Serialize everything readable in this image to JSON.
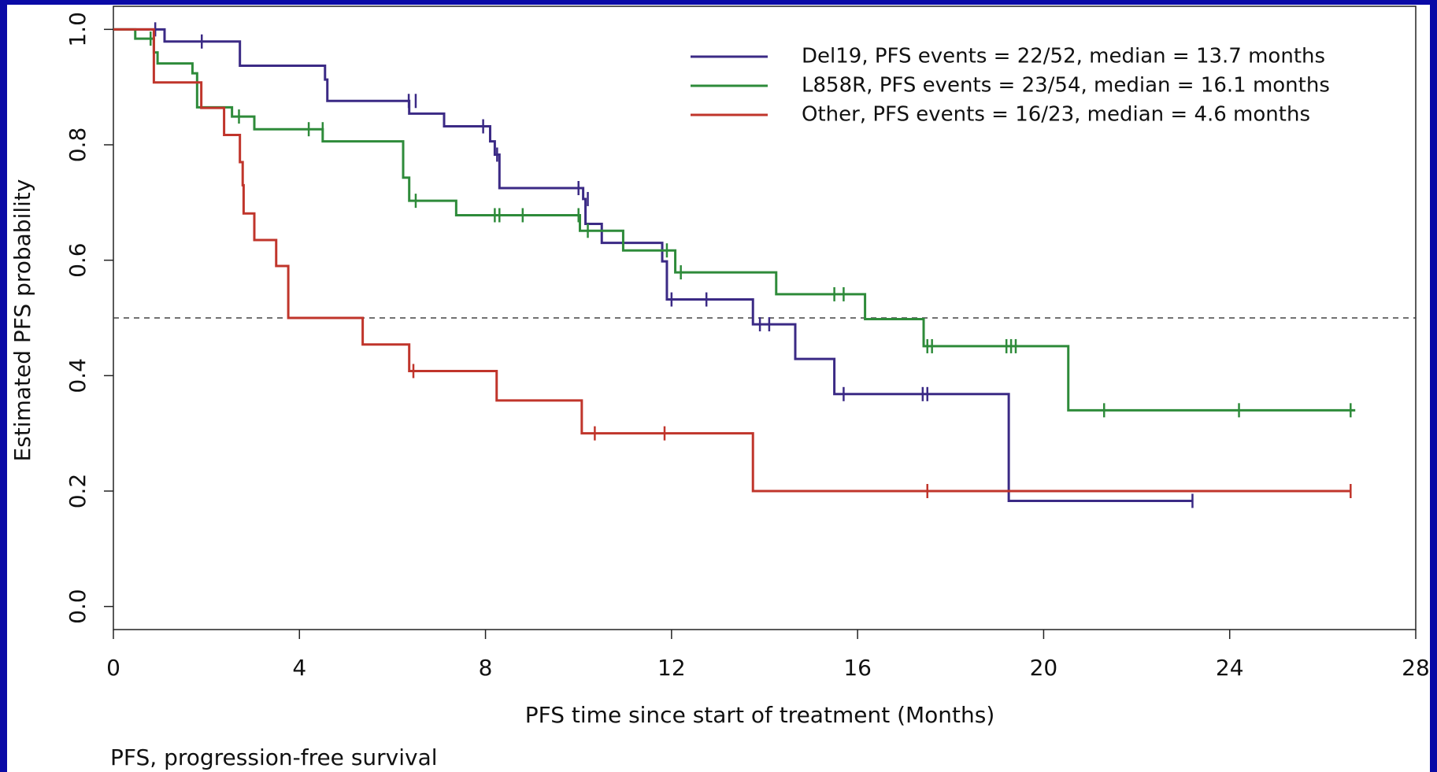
{
  "chart_data": {
    "type": "kaplan-meier",
    "xlabel": "PFS time since start of treatment (Months)",
    "ylabel": "Estimated PFS probability",
    "footnote": "PFS, progression-free survival",
    "xlim": [
      0,
      28
    ],
    "xticks": [
      0,
      4,
      8,
      12,
      16,
      20,
      24,
      28
    ],
    "ylim": [
      -0.04,
      1.04
    ],
    "yticks": [
      {
        "value": 0,
        "label": "0.0"
      },
      0.2,
      0.4,
      0.6,
      0.8,
      {
        "value": 1,
        "label": "1.0"
      }
    ],
    "hline": 0.5,
    "legend": "top-right",
    "series": [
      {
        "name": "Del19, PFS events = 22/52, median = 13.7 months",
        "color": "#3b2a85",
        "x": [
          0,
          1.1,
          2.72,
          4.55,
          4.6,
          6.36,
          7.11,
          8.1,
          8.2,
          8.3,
          10.1,
          10.15,
          10.5,
          11.8,
          11.9,
          13.75,
          14.66,
          15.5,
          19.25,
          23.2
        ],
        "values": [
          1,
          0.979,
          0.937,
          0.913,
          0.876,
          0.854,
          0.832,
          0.806,
          0.783,
          0.725,
          0.706,
          0.663,
          0.63,
          0.598,
          0.532,
          0.489,
          0.429,
          0.368,
          0.183,
          0.183
        ],
        "censored": {
          "x": [
            0.9,
            1.9,
            6.35,
            6.5,
            7.95,
            8.25,
            10.0,
            10.2,
            12.0,
            12.75,
            13.9,
            14.1,
            15.7,
            17.4,
            17.5,
            23.2
          ],
          "values": [
            1,
            0.979,
            0.876,
            0.876,
            0.832,
            0.783,
            0.725,
            0.706,
            0.532,
            0.532,
            0.489,
            0.489,
            0.368,
            0.368,
            0.368,
            0.183
          ]
        }
      },
      {
        "name": "L858R, PFS events = 23/54, median = 16.1 months",
        "color": "#2e8b3a",
        "x": [
          0,
          0.47,
          0.87,
          0.95,
          1.7,
          1.8,
          2.55,
          3.03,
          4.5,
          6.23,
          6.36,
          7.37,
          10.03,
          10.96,
          12.08,
          14.25,
          16.16,
          17.42,
          20.53,
          26.7
        ],
        "values": [
          1,
          0.984,
          0.96,
          0.941,
          0.924,
          0.865,
          0.849,
          0.827,
          0.806,
          0.743,
          0.703,
          0.678,
          0.651,
          0.617,
          0.579,
          0.541,
          0.498,
          0.451,
          0.34,
          0.34
        ],
        "censored": {
          "x": [
            0.8,
            2.7,
            4.2,
            4.5,
            6.5,
            8.2,
            8.3,
            8.8,
            10.0,
            10.2,
            11.9,
            12.2,
            15.5,
            15.7,
            17.5,
            17.6,
            19.2,
            19.3,
            19.4,
            21.3,
            24.2,
            26.6
          ],
          "values": [
            0.984,
            0.849,
            0.827,
            0.827,
            0.703,
            0.678,
            0.678,
            0.678,
            0.678,
            0.651,
            0.617,
            0.579,
            0.541,
            0.541,
            0.451,
            0.451,
            0.451,
            0.451,
            0.451,
            0.34,
            0.34,
            0.34
          ]
        }
      },
      {
        "name": "Other, PFS events = 16/23, median = 4.6 months",
        "color": "#c0352b",
        "x": [
          0,
          0.87,
          1.89,
          2.38,
          2.72,
          2.78,
          2.8,
          3.03,
          3.5,
          3.76,
          5.36,
          6.36,
          8.24,
          10.07,
          13.75,
          26.6
        ],
        "values": [
          1,
          0.908,
          0.864,
          0.817,
          0.77,
          0.73,
          0.681,
          0.635,
          0.59,
          0.5,
          0.454,
          0.408,
          0.357,
          0.3,
          0.2,
          0.2
        ],
        "censored": {
          "x": [
            6.45,
            10.35,
            11.85,
            17.5,
            26.6
          ],
          "values": [
            0.408,
            0.3,
            0.3,
            0.2,
            0.2
          ]
        }
      }
    ]
  }
}
